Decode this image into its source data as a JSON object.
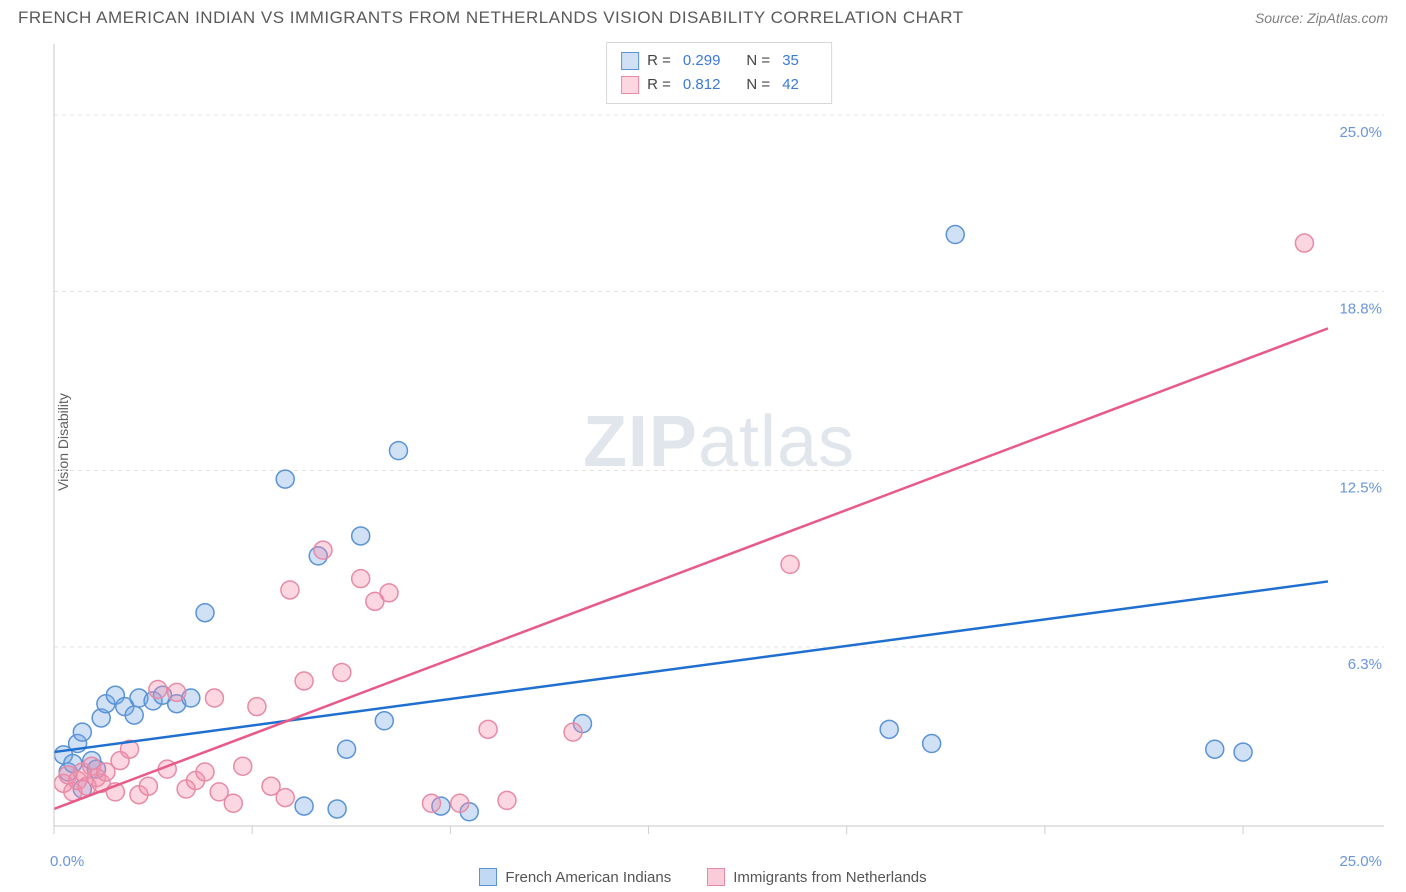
{
  "header": {
    "title": "FRENCH AMERICAN INDIAN VS IMMIGRANTS FROM NETHERLANDS VISION DISABILITY CORRELATION CHART",
    "source_prefix": "Source: ",
    "source_name": "ZipAtlas.com"
  },
  "watermark": {
    "zip": "ZIP",
    "atlas": "atlas"
  },
  "chart": {
    "type": "scatter",
    "ylabel": "Vision Disability",
    "background_color": "#ffffff",
    "grid_color": "#e4e4e4",
    "axis_color": "#c9c9c9",
    "tick_line_color": "#d0d0d0",
    "tick_label_color": "#6a95d9",
    "xlim": [
      0,
      27
    ],
    "ylim": [
      0,
      27.5
    ],
    "x_tick_positions": [
      0,
      4.2,
      8.4,
      12.6,
      16.8,
      21.0,
      25.2
    ],
    "x_axis_labels": {
      "min": "0.0%",
      "max": "25.0%"
    },
    "y_gridlines": [
      {
        "value": 6.3,
        "label": "6.3%"
      },
      {
        "value": 12.5,
        "label": "12.5%"
      },
      {
        "value": 18.8,
        "label": "18.8%"
      },
      {
        "value": 25.0,
        "label": "25.0%"
      }
    ],
    "marker_radius": 9,
    "marker_stroke_width": 1.5,
    "trend_line_width": 2.5,
    "series": [
      {
        "name": "French American Indians",
        "fill_color": "rgba(120,170,230,0.35)",
        "stroke_color": "#5a93d6",
        "line_color": "#1f6fd1",
        "r_value": "0.299",
        "n_value": "35",
        "trend": {
          "x1": 0,
          "y1": 2.6,
          "x2": 27,
          "y2": 8.6
        },
        "points": [
          [
            0.2,
            2.5
          ],
          [
            0.3,
            1.9
          ],
          [
            0.4,
            2.2
          ],
          [
            0.5,
            2.9
          ],
          [
            0.6,
            1.3
          ],
          [
            0.6,
            3.3
          ],
          [
            0.8,
            2.3
          ],
          [
            0.9,
            2.0
          ],
          [
            1.0,
            3.8
          ],
          [
            1.1,
            4.3
          ],
          [
            1.3,
            4.6
          ],
          [
            1.5,
            4.2
          ],
          [
            1.7,
            3.9
          ],
          [
            1.8,
            4.5
          ],
          [
            2.1,
            4.4
          ],
          [
            2.3,
            4.6
          ],
          [
            2.6,
            4.3
          ],
          [
            2.9,
            4.5
          ],
          [
            3.2,
            7.5
          ],
          [
            4.9,
            12.2
          ],
          [
            5.3,
            0.7
          ],
          [
            5.6,
            9.5
          ],
          [
            6.0,
            0.6
          ],
          [
            6.2,
            2.7
          ],
          [
            6.5,
            10.2
          ],
          [
            7.0,
            3.7
          ],
          [
            7.3,
            13.2
          ],
          [
            8.2,
            0.7
          ],
          [
            8.8,
            0.5
          ],
          [
            11.2,
            3.6
          ],
          [
            17.7,
            3.4
          ],
          [
            18.6,
            2.9
          ],
          [
            19.1,
            20.8
          ],
          [
            24.6,
            2.7
          ],
          [
            25.2,
            2.6
          ]
        ]
      },
      {
        "name": "Immigrants from Netherlands",
        "fill_color": "rgba(245,140,170,0.35)",
        "stroke_color": "#e78aa6",
        "line_color": "#e85a88",
        "r_value": "0.812",
        "n_value": "42",
        "trend": {
          "x1": 0,
          "y1": 0.6,
          "x2": 27,
          "y2": 17.5
        },
        "points": [
          [
            0.2,
            1.5
          ],
          [
            0.3,
            1.8
          ],
          [
            0.4,
            1.2
          ],
          [
            0.5,
            1.6
          ],
          [
            0.6,
            1.9
          ],
          [
            0.7,
            1.4
          ],
          [
            0.8,
            2.1
          ],
          [
            0.9,
            1.7
          ],
          [
            1.0,
            1.5
          ],
          [
            1.1,
            1.9
          ],
          [
            1.3,
            1.2
          ],
          [
            1.4,
            2.3
          ],
          [
            1.6,
            2.7
          ],
          [
            1.8,
            1.1
          ],
          [
            2.0,
            1.4
          ],
          [
            2.2,
            4.8
          ],
          [
            2.4,
            2.0
          ],
          [
            2.6,
            4.7
          ],
          [
            2.8,
            1.3
          ],
          [
            3.0,
            1.6
          ],
          [
            3.2,
            1.9
          ],
          [
            3.4,
            4.5
          ],
          [
            3.5,
            1.2
          ],
          [
            3.8,
            0.8
          ],
          [
            4.0,
            2.1
          ],
          [
            4.3,
            4.2
          ],
          [
            4.6,
            1.4
          ],
          [
            4.9,
            1.0
          ],
          [
            5.0,
            8.3
          ],
          [
            5.3,
            5.1
          ],
          [
            5.7,
            9.7
          ],
          [
            6.1,
            5.4
          ],
          [
            6.5,
            8.7
          ],
          [
            6.8,
            7.9
          ],
          [
            7.1,
            8.2
          ],
          [
            8.0,
            0.8
          ],
          [
            8.6,
            0.8
          ],
          [
            9.2,
            3.4
          ],
          [
            9.6,
            0.9
          ],
          [
            15.6,
            9.2
          ],
          [
            26.5,
            20.5
          ],
          [
            11.0,
            3.3
          ]
        ]
      }
    ]
  },
  "bottom_legend": {
    "items": [
      {
        "label": "French American Indians",
        "fill": "rgba(120,170,230,0.45)",
        "stroke": "#5a93d6"
      },
      {
        "label": "Immigrants from Netherlands",
        "fill": "rgba(245,140,170,0.45)",
        "stroke": "#e78aa6"
      }
    ]
  }
}
